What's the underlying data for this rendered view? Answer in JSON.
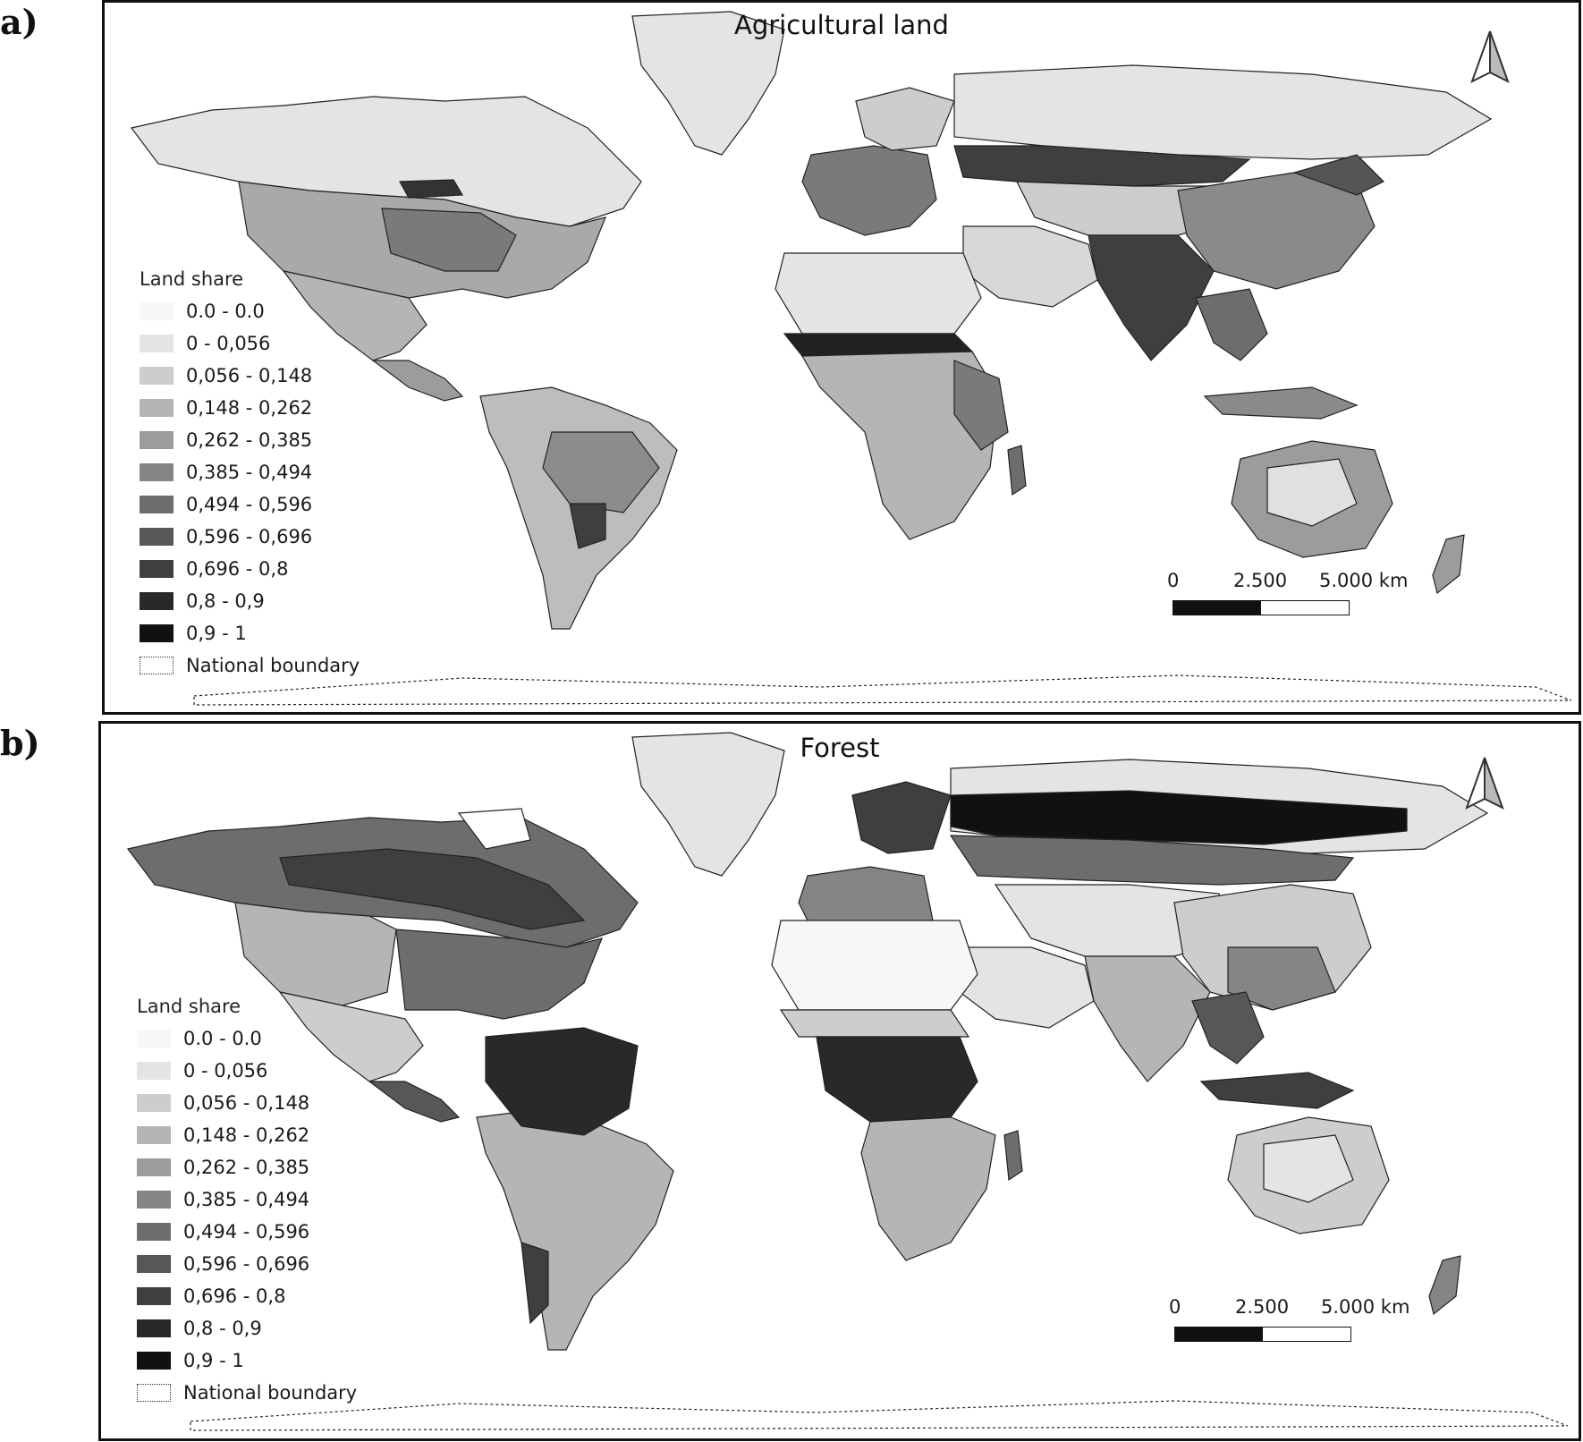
{
  "panels": [
    {
      "letter": "a)",
      "title": "Agricultural land",
      "legend": {
        "title": "Land share",
        "classes": [
          {
            "label": "0.0 - 0.0",
            "color": "#f7f7f7"
          },
          {
            "label": "0 - 0,056",
            "color": "#e4e4e4"
          },
          {
            "label": "0,056 - 0,148",
            "color": "#cdcdcd"
          },
          {
            "label": "0,148 - 0,262",
            "color": "#b5b5b5"
          },
          {
            "label": "0,262 - 0,385",
            "color": "#9c9c9c"
          },
          {
            "label": "0,385 - 0,494",
            "color": "#858585"
          },
          {
            "label": "0,494 - 0,596",
            "color": "#6d6d6d"
          },
          {
            "label": "0,596 - 0,696",
            "color": "#575757"
          },
          {
            "label": "0,696 - 0,8",
            "color": "#3f3f3f"
          },
          {
            "label": "0,8 - 0,9",
            "color": "#292929"
          },
          {
            "label": "0,9 - 1",
            "color": "#111111"
          }
        ],
        "boundary_label": "National boundary"
      },
      "scale": {
        "zero": "0",
        "mid": "2.500",
        "end": "5.000 km"
      }
    },
    {
      "letter": "b)",
      "title": "Forest",
      "legend": {
        "title": "Land share",
        "classes": [
          {
            "label": "0.0 - 0.0",
            "color": "#f7f7f7"
          },
          {
            "label": "0 - 0,056",
            "color": "#e4e4e4"
          },
          {
            "label": "0,056 - 0,148",
            "color": "#cdcdcd"
          },
          {
            "label": "0,148 - 0,262",
            "color": "#b5b5b5"
          },
          {
            "label": "0,262 - 0,385",
            "color": "#9c9c9c"
          },
          {
            "label": "0,385 - 0,494",
            "color": "#858585"
          },
          {
            "label": "0,494 - 0,596",
            "color": "#6d6d6d"
          },
          {
            "label": "0,596 - 0,696",
            "color": "#575757"
          },
          {
            "label": "0,696 - 0,8",
            "color": "#3f3f3f"
          },
          {
            "label": "0,8 - 0,9",
            "color": "#292929"
          },
          {
            "label": "0,9 - 1",
            "color": "#111111"
          }
        ],
        "boundary_label": "National boundary"
      },
      "scale": {
        "zero": "0",
        "mid": "2.500",
        "end": "5.000 km"
      }
    }
  ]
}
